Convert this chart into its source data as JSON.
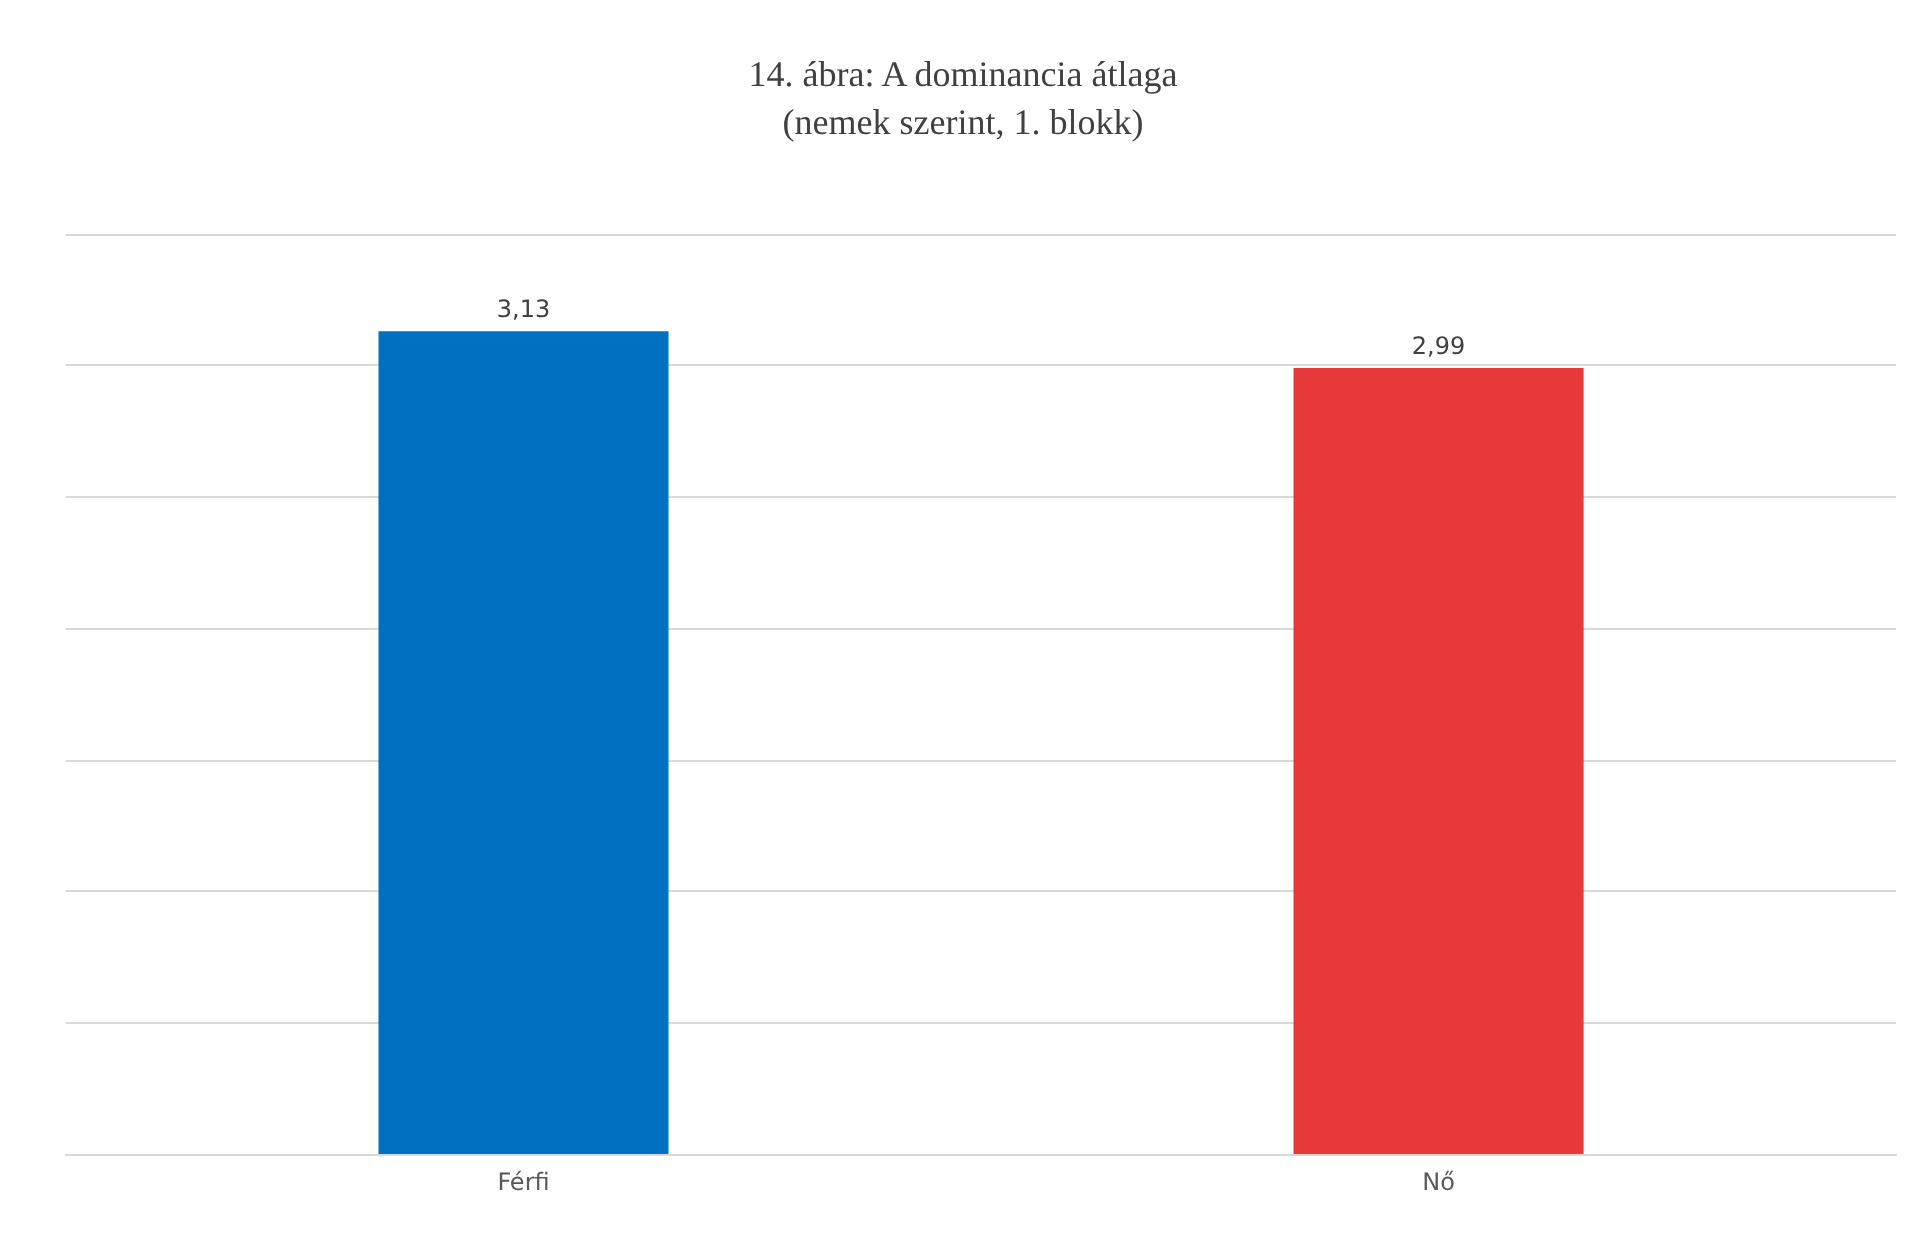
{
  "chart_data": {
    "type": "bar",
    "title": "14. ábra: A dominancia átlaga\n(nemek szerint, 1. blokk)",
    "categories": [
      "Férfi",
      "Nő"
    ],
    "values": [
      3.13,
      2.99
    ],
    "value_labels": [
      "3,13",
      "2,99"
    ],
    "colors": [
      "#0070c0",
      "#e8393a"
    ],
    "tick_labels": "x",
    "grid": "y"
  }
}
